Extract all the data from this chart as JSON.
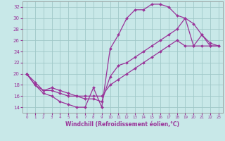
{
  "title": "",
  "xlabel": "Windchill (Refroidissement éolien,°C)",
  "ylabel": "",
  "xlim": [
    -0.5,
    23.5
  ],
  "ylim": [
    13,
    33
  ],
  "xticks": [
    0,
    1,
    2,
    3,
    4,
    5,
    6,
    7,
    8,
    9,
    10,
    11,
    12,
    13,
    14,
    15,
    16,
    17,
    18,
    19,
    20,
    21,
    22,
    23
  ],
  "yticks": [
    14,
    16,
    18,
    20,
    22,
    24,
    26,
    28,
    30,
    32
  ],
  "bg_color": "#c8e8e8",
  "grid_color": "#a0c8c8",
  "line_color": "#993399",
  "line1_x": [
    0,
    1,
    2,
    3,
    4,
    5,
    6,
    7,
    8,
    9,
    10,
    11,
    12,
    13,
    14,
    15,
    16,
    17,
    18,
    19,
    20,
    21,
    22,
    23
  ],
  "line1_y": [
    20,
    18,
    16.5,
    16,
    15,
    14.5,
    14,
    14,
    17.5,
    14,
    24.5,
    27,
    30,
    31.5,
    31.5,
    32.5,
    32.5,
    32,
    30.5,
    30,
    29,
    27,
    25,
    25
  ],
  "line2_x": [
    0,
    1,
    2,
    3,
    4,
    5,
    6,
    7,
    8,
    9,
    10,
    11,
    12,
    13,
    14,
    15,
    16,
    17,
    18,
    19,
    20,
    21,
    22,
    23
  ],
  "line2_y": [
    20,
    18,
    17,
    17,
    16.5,
    16,
    16,
    15.5,
    15.5,
    15,
    19.5,
    21.5,
    22,
    23,
    24,
    25,
    26,
    27,
    28,
    30,
    25,
    27,
    25.5,
    25
  ],
  "line3_x": [
    0,
    1,
    2,
    3,
    4,
    5,
    6,
    7,
    8,
    9,
    10,
    11,
    12,
    13,
    14,
    15,
    16,
    17,
    18,
    19,
    20,
    21,
    22,
    23
  ],
  "line3_y": [
    20,
    18.5,
    17,
    17.5,
    17,
    16.5,
    16,
    16,
    16,
    16,
    18,
    19,
    20,
    21,
    22,
    23,
    24,
    25,
    26,
    25,
    25,
    25,
    25,
    25
  ]
}
